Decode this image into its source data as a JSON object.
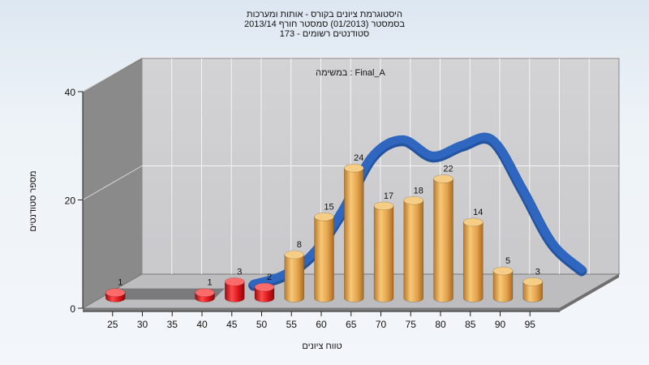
{
  "chart_data": {
    "type": "bar",
    "title_lines": [
      "היסטוגרמת ציונים בקורס - אותות ומערכות",
      "בסמסטר  (01/2013)  סמסטר חורף 2013/14",
      "סטודנטים רשומים - 173"
    ],
    "annotation": "במשימה : Final_A",
    "xlabel": "טווח ציונים",
    "ylabel": "מספר סטודנטים",
    "ylim": [
      0,
      40
    ],
    "yticks": [
      0,
      20,
      40
    ],
    "x_ticks": [
      "25",
      "30",
      "35",
      "40",
      "45",
      "50",
      "55",
      "60",
      "65",
      "70",
      "75",
      "80",
      "85",
      "90",
      "95"
    ],
    "grid": true,
    "bars": [
      {
        "bin": "20-25",
        "value": 1,
        "color": "#d8141a"
      },
      {
        "bin": "25-30",
        "value": 0,
        "color": "#d8141a"
      },
      {
        "bin": "30-35",
        "value": 0,
        "color": "#d8141a"
      },
      {
        "bin": "35-40",
        "value": 1,
        "color": "#d8141a"
      },
      {
        "bin": "40-45",
        "value": 3,
        "color": "#d8141a"
      },
      {
        "bin": "45-50",
        "value": 2,
        "color": "#d8141a"
      },
      {
        "bin": "50-55",
        "value": 8,
        "color": "#e2a04a"
      },
      {
        "bin": "55-60",
        "value": 15,
        "color": "#e2a04a"
      },
      {
        "bin": "60-65",
        "value": 24,
        "color": "#e2a04a"
      },
      {
        "bin": "65-70",
        "value": 17,
        "color": "#e2a04a"
      },
      {
        "bin": "70-75",
        "value": 18,
        "color": "#e2a04a"
      },
      {
        "bin": "75-80",
        "value": 22,
        "color": "#e2a04a"
      },
      {
        "bin": "80-85",
        "value": 14,
        "color": "#e2a04a"
      },
      {
        "bin": "85-90",
        "value": 5,
        "color": "#e2a04a"
      },
      {
        "bin": "90-95",
        "value": 3,
        "color": "#e2a04a"
      }
    ],
    "curve": {
      "color": "#2f67c0",
      "points": [
        [
          42.5,
          0.3
        ],
        [
          47.5,
          2
        ],
        [
          52.5,
          6
        ],
        [
          57.5,
          14
        ],
        [
          62.5,
          24
        ],
        [
          67.5,
          27
        ],
        [
          72.5,
          24
        ],
        [
          77.5,
          26
        ],
        [
          82.5,
          27
        ],
        [
          87.5,
          18
        ],
        [
          92.5,
          8
        ],
        [
          97.5,
          3
        ]
      ]
    }
  }
}
